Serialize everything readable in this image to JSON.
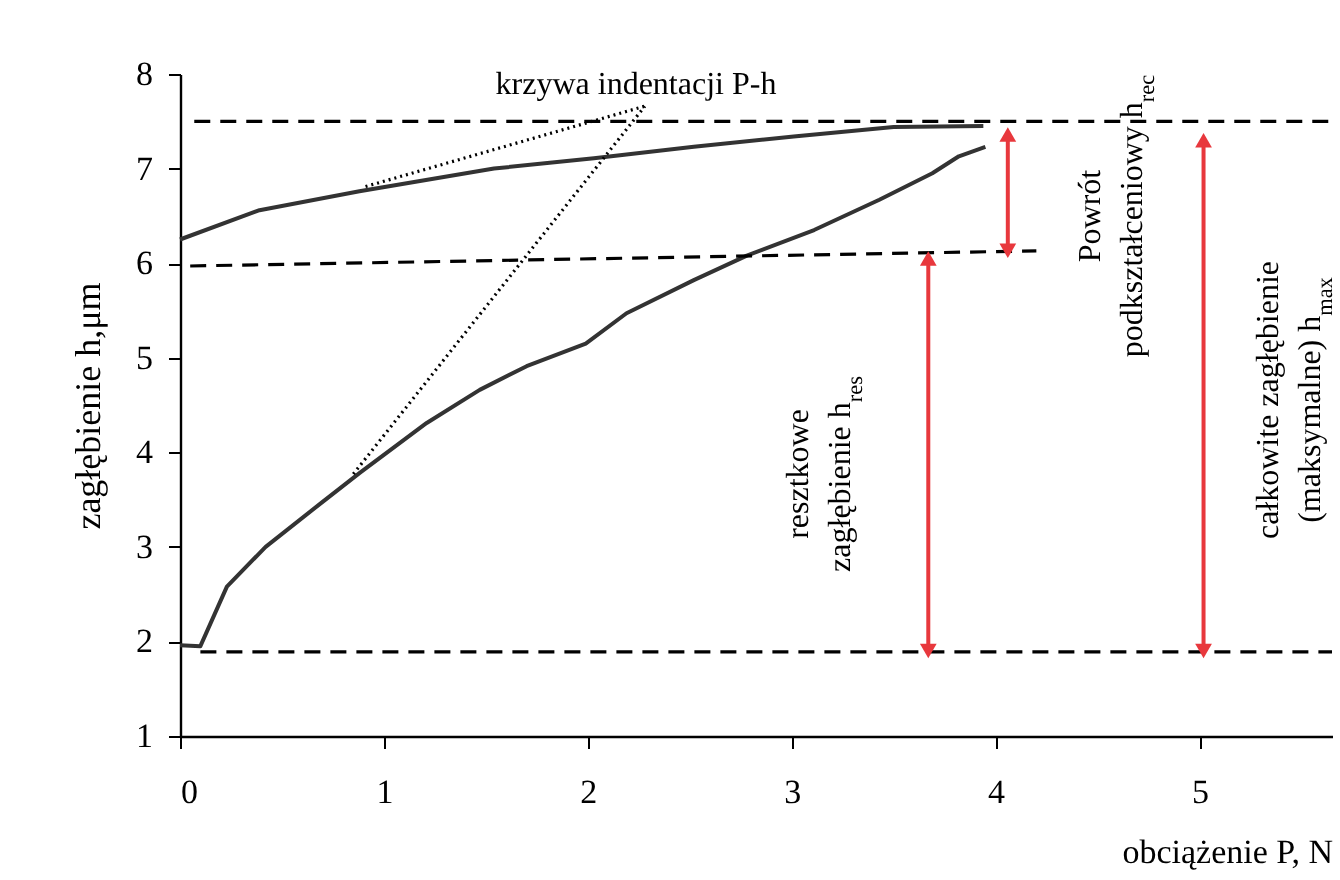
{
  "chart_data": {
    "type": "line",
    "xlabel": "obciążenie P, N",
    "ylabel": "zagłębienie  h,μm",
    "xlim": [
      0,
      5.65
    ],
    "ylim": [
      1,
      8
    ],
    "xticks": [
      0,
      1,
      2,
      3,
      4,
      5
    ],
    "yticks": [
      1,
      2,
      3,
      4,
      5,
      6,
      7,
      8
    ],
    "grid": false,
    "annotations": [
      "krzywa indentacji P-h",
      "resztkowe\nzagłębienie h$_{res}$",
      "Powrót\npodkształceniowy h$_{rec}$",
      "całkowite zagłębienie\n(maksymalne) h$_{max}$"
    ],
    "series": [
      {
        "color": "#333333",
        "x": [
          0,
          0.1,
          0.23,
          0.42,
          0.69,
          0.88,
          1.21,
          1.47,
          1.7,
          1.99,
          2.19,
          2.52,
          2.78,
          3.11,
          3.43,
          3.69,
          3.82,
          3.95
        ],
        "values": [
          1.96,
          1.95,
          2.58,
          3.0,
          3.46,
          3.78,
          4.31,
          4.66,
          4.91,
          5.15,
          5.47,
          5.82,
          6.08,
          6.35,
          6.67,
          6.95,
          7.13,
          7.23
        ]
      },
      {
        "color": "#333333",
        "x": [
          3.94,
          3.5,
          3.01,
          2.52,
          2.03,
          1.54,
          0.88,
          0.39,
          0
        ],
        "values": [
          7.45,
          7.44,
          7.34,
          7.23,
          7.11,
          7.0,
          6.76,
          6.56,
          6.25
        ]
      },
      {
        "color": "#000000",
        "line_style": "dashed",
        "x": [
          0.07,
          5.65
        ],
        "values": [
          7.5,
          7.5
        ]
      },
      {
        "color": "#000000",
        "line_style": "dashed",
        "x": [
          0.05,
          4.2
        ],
        "values": [
          5.97,
          6.13
        ]
      },
      {
        "color": "#000000",
        "line_style": "dashed",
        "x": [
          0.1,
          5.65
        ],
        "values": [
          1.89,
          1.89
        ]
      },
      {
        "color": "#000000",
        "line_style": "dotted",
        "x": [
          2.28,
          0.91
        ],
        "values": [
          7.66,
          6.81
        ]
      },
      {
        "color": "#000000",
        "line_style": "dotted",
        "x": [
          2.28,
          0.85
        ],
        "values": [
          7.66,
          3.77
        ]
      },
      {
        "color": "#e8383d",
        "marker": "triangle",
        "x": [
          4.06,
          4.06
        ],
        "values": [
          6.13,
          7.36
        ]
      },
      {
        "color": "#e8383d",
        "marker": "triangle",
        "x": [
          3.67,
          3.67
        ],
        "values": [
          1.9,
          6.05
        ]
      },
      {
        "color": "#e8383d",
        "marker": "triangle",
        "x": [
          5.02,
          5.02
        ],
        "values": [
          1.9,
          7.3
        ]
      }
    ]
  }
}
